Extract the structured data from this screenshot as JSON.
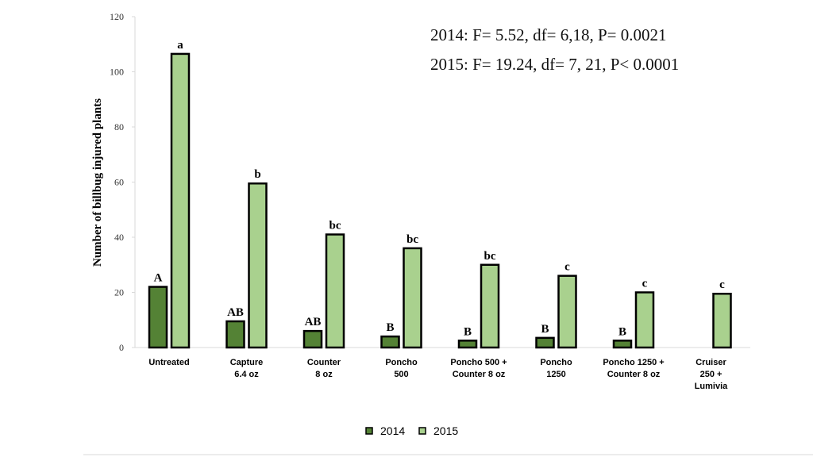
{
  "chart_data": {
    "type": "bar",
    "title": "",
    "xlabel": "",
    "ylabel": "Number of billbug injured plants",
    "ylim": [
      0,
      120
    ],
    "yticks": [
      0,
      20,
      40,
      60,
      80,
      100,
      120
    ],
    "grid": false,
    "legend_position": "bottom",
    "categories": [
      [
        "Untreated"
      ],
      [
        "Capture",
        "6.4 oz"
      ],
      [
        "Counter",
        "8 oz"
      ],
      [
        "Poncho",
        "500"
      ],
      [
        "Poncho 500 +",
        "Counter 8 oz"
      ],
      [
        "Poncho",
        "1250"
      ],
      [
        "Poncho 1250 +",
        "Counter 8 oz"
      ],
      [
        "Cruiser",
        "250 +",
        "Lumivia"
      ]
    ],
    "series": [
      {
        "name": "2014",
        "color": "#548235",
        "values": [
          22,
          9.5,
          6,
          4,
          2.5,
          3.5,
          2.5,
          null
        ],
        "labels": [
          "A",
          "AB",
          "AB",
          "B",
          "B",
          "B",
          "B",
          ""
        ]
      },
      {
        "name": "2015",
        "color": "#a9d18e",
        "values": [
          106.5,
          59.5,
          41,
          36,
          30,
          26,
          20,
          19.5
        ],
        "labels": [
          "a",
          "b",
          "bc",
          "bc",
          "bc",
          "c",
          "c",
          "c"
        ]
      }
    ],
    "annotations": [
      "2014: F= 5.52, df= 6,18, P= 0.0021",
      "2015: F= 19.24, df= 7, 21, P< 0.0001"
    ]
  }
}
